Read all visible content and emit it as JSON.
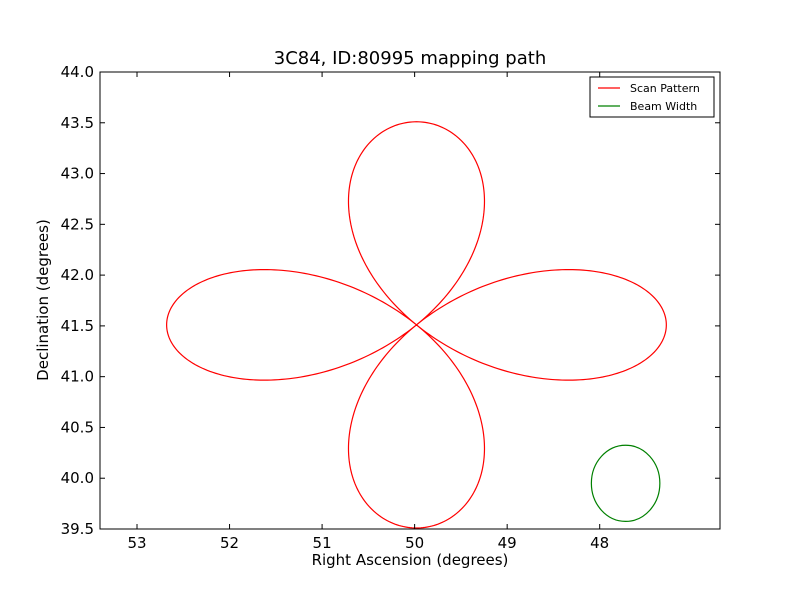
{
  "chart_data": {
    "type": "line",
    "title": "3C84, ID:80995 mapping path",
    "xlabel": "Right Ascension (degrees)",
    "ylabel": "Declination (degrees)",
    "xlim": [
      53.4,
      46.7
    ],
    "ylim": [
      39.5,
      44.0
    ],
    "x_inverted": true,
    "xticks": [
      53,
      52,
      51,
      50,
      49,
      48
    ],
    "xtick_labels": [
      "53",
      "52",
      "51",
      "50",
      "49",
      "48"
    ],
    "yticks": [
      39.5,
      40.0,
      40.5,
      41.0,
      41.5,
      42.0,
      42.5,
      43.0,
      43.5,
      44.0
    ],
    "ytick_labels": [
      "39.5",
      "40.0",
      "40.5",
      "41.0",
      "41.5",
      "42.0",
      "42.5",
      "43.0",
      "43.5",
      "44.0"
    ],
    "grid": false,
    "legend_position": "top-right",
    "series": [
      {
        "name": "Scan Pattern",
        "color": "#ff0000",
        "shape": "four-petal rose",
        "center": [
          49.98,
          41.51
        ],
        "ra_half_width": 2.7,
        "dec_half_height": 2.0
      },
      {
        "name": "Beam Width",
        "color": "#008000",
        "shape": "circle",
        "center": [
          47.72,
          39.95
        ],
        "ra_radius": 0.37,
        "dec_radius": 0.375
      }
    ]
  }
}
